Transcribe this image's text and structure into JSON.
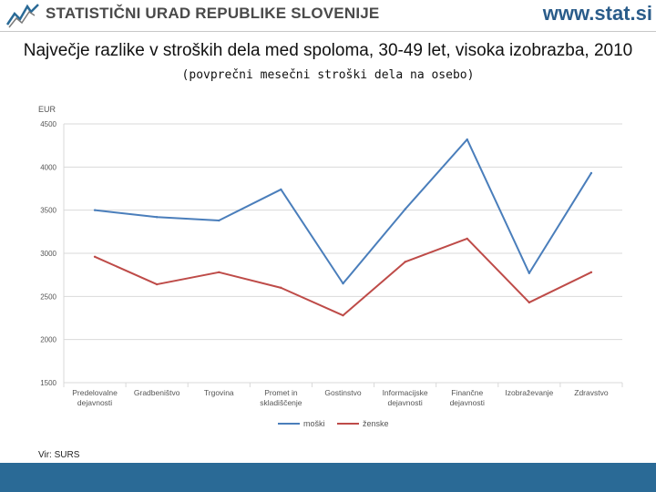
{
  "header": {
    "org_name": "STATISTIČNI URAD REPUBLIKE SLOVENIJE",
    "website": "www.stat.si",
    "logo_icon": "sigma-logo-icon"
  },
  "title": {
    "main": "Največje razlike v stroških dela med spoloma, 30-49 let, visoka izobrazba, 2010",
    "subtitle": "(povprečni mesečni stroški dela na osebo)"
  },
  "source": "Vir: SURS",
  "colors": {
    "male": "#4a7ebb",
    "female": "#be4b48",
    "footer": "#2a6a96",
    "grid": "#d9d9d9"
  },
  "chart_data": {
    "type": "line",
    "title": "Največje razlike v stroških dela med spoloma, 30-49 let, visoka izobrazba, 2010",
    "ylabel": "EUR",
    "xlabel": "",
    "ylim": [
      1500,
      4500
    ],
    "yticks": [
      1500,
      2000,
      2500,
      3000,
      3500,
      4000,
      4500
    ],
    "grid": true,
    "legend": "bottom",
    "categories": [
      [
        "Predelovalne",
        "dejavnosti"
      ],
      [
        "Gradbeništvo"
      ],
      [
        "Trgovina"
      ],
      [
        "Promet in",
        "skladiščenje"
      ],
      [
        "Gostinstvo"
      ],
      [
        "Informacijske",
        "dejavnosti"
      ],
      [
        "Finančne",
        "dejavnosti"
      ],
      [
        "Izobraževanje"
      ],
      [
        "Zdravstvo"
      ]
    ],
    "series": [
      {
        "name": "moški",
        "color": "#4a7ebb",
        "values": [
          3500,
          3420,
          3380,
          3740,
          2650,
          3510,
          4320,
          2770,
          3930
        ]
      },
      {
        "name": "ženske",
        "color": "#be4b48",
        "values": [
          2960,
          2640,
          2780,
          2600,
          2280,
          2900,
          3170,
          2430,
          2780
        ]
      }
    ]
  }
}
